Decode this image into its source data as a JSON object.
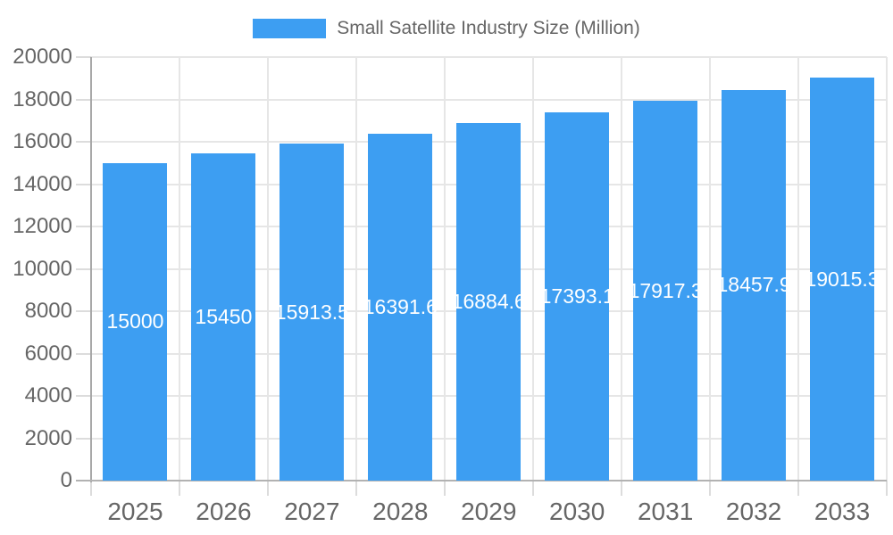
{
  "colors": {
    "bar": "#3d9ef2",
    "bar_label_text": "#ffffff",
    "axis_text": "#666666",
    "gridline": "#e6e6e6",
    "axis_line": "#b0b0b0",
    "background": "#ffffff"
  },
  "chart_data": {
    "type": "bar",
    "series_name": "Small Satellite Industry Size (Million)",
    "categories": [
      "2025",
      "2026",
      "2027",
      "2028",
      "2029",
      "2030",
      "2031",
      "2032",
      "2033"
    ],
    "values": [
      15000,
      15450,
      15913.5,
      16391.6,
      16884.6,
      17393.1,
      17917.3,
      18457.9,
      19015.3
    ],
    "bar_labels": [
      "15000",
      "15450",
      "15913.5",
      "16391.6",
      "16884.6",
      "17393.1",
      "17917.3",
      "18457.9",
      "19015.3"
    ],
    "ylim": [
      0,
      20000
    ],
    "yticks": [
      0,
      2000,
      4000,
      6000,
      8000,
      10000,
      12000,
      14000,
      16000,
      18000,
      20000
    ],
    "ytick_labels": [
      "0",
      "2000",
      "4000",
      "6000",
      "8000",
      "10000",
      "12000",
      "14000",
      "16000",
      "18000",
      "20000"
    ],
    "legend_position": "top",
    "grid": true,
    "value_labels_inside_bars": true
  }
}
